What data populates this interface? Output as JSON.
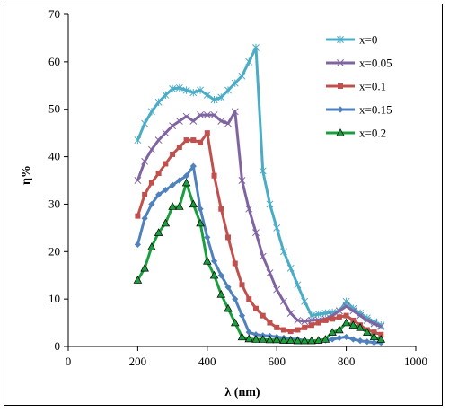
{
  "chart_data": {
    "type": "line",
    "title": "",
    "xlabel": "λ (nm)",
    "ylabel": "η%",
    "xlim": [
      0,
      1000
    ],
    "ylim": [
      0,
      70
    ],
    "xticks": [
      0,
      200,
      400,
      600,
      800,
      1000
    ],
    "yticks": [
      0,
      10,
      20,
      30,
      40,
      50,
      60,
      70
    ],
    "grid": false,
    "legend_position": "top-right",
    "series": [
      {
        "name": "x=0",
        "color": "#4bacc6",
        "marker": "asterisk",
        "x": [
          200,
          220,
          240,
          260,
          280,
          300,
          320,
          340,
          360,
          380,
          400,
          420,
          440,
          460,
          480,
          500,
          520,
          540,
          560,
          580,
          600,
          620,
          640,
          660,
          680,
          700,
          720,
          740,
          760,
          780,
          800,
          820,
          840,
          860,
          880,
          900
        ],
        "y": [
          43.5,
          47,
          49.5,
          51.5,
          53,
          54.3,
          54.5,
          54,
          53.5,
          54,
          53,
          52,
          52.5,
          54,
          55.5,
          57,
          60,
          63,
          37,
          30,
          25,
          20,
          16.5,
          13,
          9.5,
          6.5,
          6.8,
          7,
          7.2,
          7.5,
          9.5,
          8,
          7,
          6,
          5.2,
          4.5
        ]
      },
      {
        "name": "x=0.05",
        "color": "#8064a2",
        "marker": "x",
        "x": [
          200,
          220,
          240,
          260,
          280,
          300,
          320,
          340,
          360,
          380,
          400,
          420,
          440,
          460,
          480,
          500,
          520,
          540,
          560,
          580,
          600,
          620,
          640,
          660,
          680,
          700,
          720,
          740,
          760,
          780,
          800,
          820,
          840,
          860,
          880,
          900
        ],
        "y": [
          35,
          39,
          41.5,
          43.5,
          45,
          46.5,
          47.5,
          48.5,
          47.5,
          48.8,
          48.8,
          48.8,
          47.5,
          47,
          49.5,
          35,
          29,
          24,
          19,
          15.5,
          12,
          9.5,
          7,
          5.5,
          5.3,
          5.5,
          5.6,
          5.8,
          6.5,
          7.5,
          8.5,
          7.5,
          6.5,
          5.5,
          4.8,
          4.2
        ]
      },
      {
        "name": "x=0.1",
        "color": "#c0504d",
        "marker": "square",
        "x": [
          200,
          220,
          240,
          260,
          280,
          300,
          320,
          340,
          360,
          380,
          400,
          420,
          440,
          460,
          480,
          500,
          520,
          540,
          560,
          580,
          600,
          620,
          640,
          660,
          680,
          700,
          720,
          740,
          760,
          780,
          800,
          820,
          840,
          860,
          880,
          900
        ],
        "y": [
          27.5,
          32,
          34.5,
          36.5,
          38.5,
          40.5,
          42,
          43.5,
          43.5,
          43,
          45,
          36,
          29,
          23,
          17.5,
          13,
          10,
          8,
          6.5,
          5,
          4,
          3.5,
          3.2,
          3.5,
          4,
          4.5,
          5,
          5.5,
          5.8,
          6.2,
          6.5,
          5.5,
          4.5,
          3.5,
          3,
          2.5
        ]
      },
      {
        "name": "x=0.15",
        "color": "#4f81bd",
        "marker": "diamond",
        "x": [
          200,
          220,
          240,
          260,
          280,
          300,
          320,
          340,
          360,
          380,
          400,
          420,
          440,
          460,
          480,
          500,
          520,
          540,
          560,
          580,
          600,
          620,
          640,
          660,
          680,
          700,
          720,
          740,
          760,
          780,
          800,
          820,
          840,
          860,
          880,
          900
        ],
        "y": [
          21.5,
          27,
          30,
          32,
          33,
          34,
          35,
          36,
          38,
          29,
          23,
          18,
          15,
          12.5,
          10,
          6.5,
          3,
          2.5,
          2.3,
          2.2,
          2,
          1.8,
          1.6,
          1.5,
          1.3,
          1.2,
          1.2,
          1.3,
          1.5,
          1.8,
          2,
          1.5,
          1.2,
          1,
          0.8,
          0.8
        ]
      },
      {
        "name": "x=0.2",
        "color": "#1b9e3e",
        "marker": "triangle",
        "x": [
          200,
          220,
          240,
          260,
          280,
          300,
          320,
          340,
          360,
          380,
          400,
          420,
          440,
          460,
          480,
          500,
          520,
          540,
          560,
          580,
          600,
          620,
          640,
          660,
          680,
          700,
          720,
          740,
          760,
          780,
          800,
          820,
          840,
          860,
          880,
          900
        ],
        "y": [
          14,
          16.5,
          21,
          24,
          26,
          29.5,
          29.5,
          34.5,
          30,
          26,
          18,
          15,
          11,
          8,
          5,
          2,
          1.6,
          1.5,
          1.5,
          1.4,
          1.4,
          1.3,
          1.3,
          1.2,
          1.2,
          1.2,
          1.3,
          1.5,
          3,
          3.5,
          5,
          4.5,
          4,
          3,
          2,
          1.5
        ]
      }
    ]
  }
}
